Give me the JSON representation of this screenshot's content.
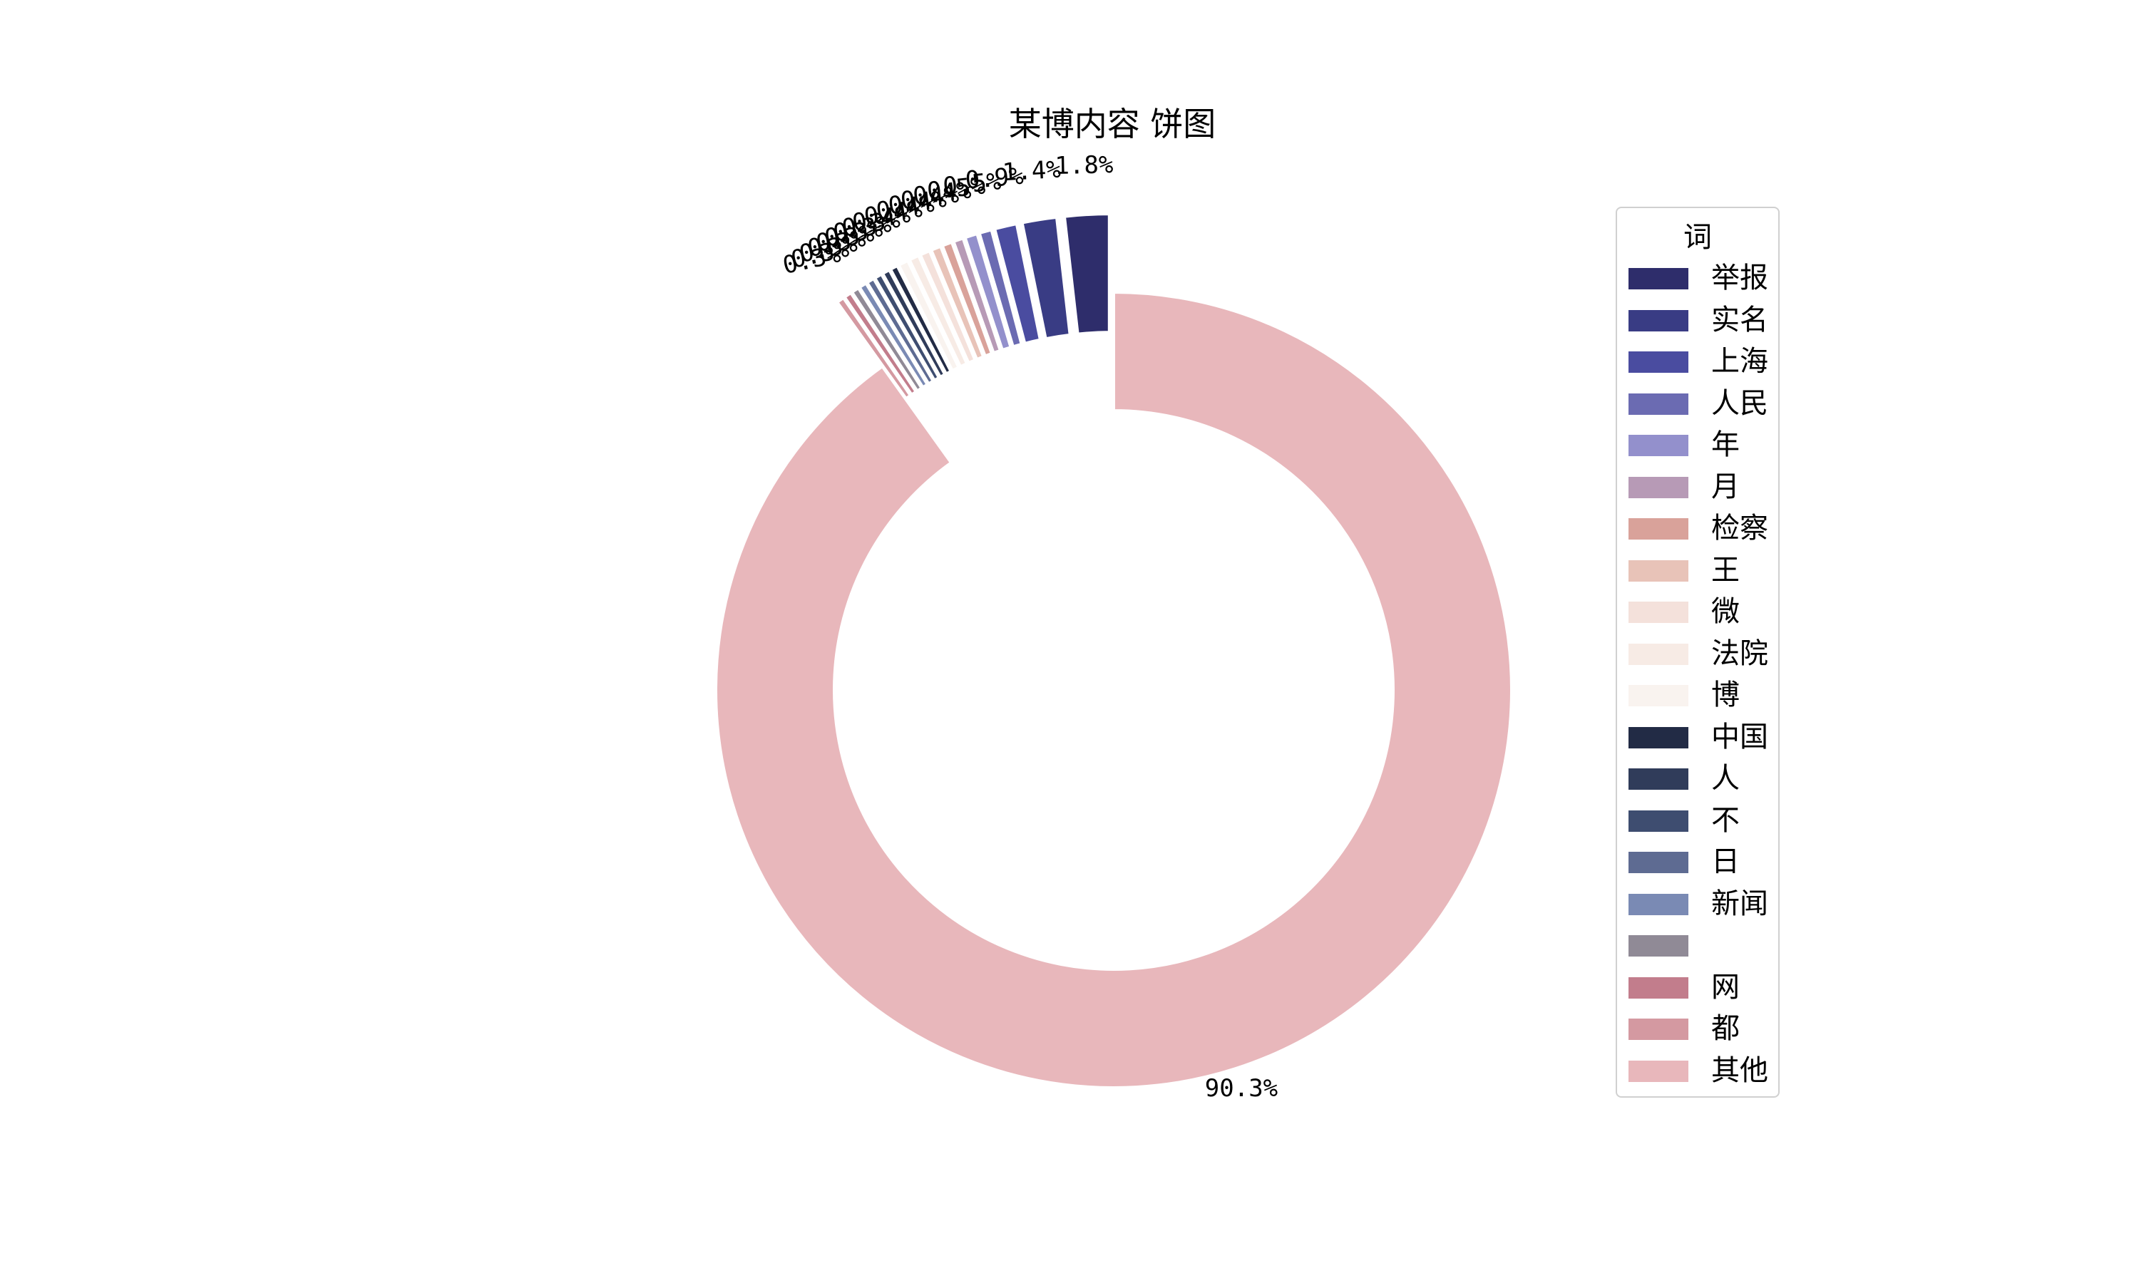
{
  "chart_data": {
    "type": "pie",
    "variant": "donut",
    "title": "某博内容 饼图",
    "legend_title": "词",
    "legend_placement": "right",
    "start_angle_deg": 90,
    "direction": "counterclockwise",
    "categories": [
      "举报",
      "实名",
      "上海",
      "人民",
      "年",
      "月",
      "检察",
      "王",
      "微",
      "法院",
      "博",
      "中国",
      "人",
      "不",
      "日",
      "新闻",
      "",
      "网",
      "都",
      "其他"
    ],
    "values": [
      1.8,
      1.4,
      0.9,
      0.5,
      0.5,
      0.4,
      0.4,
      0.4,
      0.4,
      0.4,
      0.4,
      0.3,
      0.3,
      0.3,
      0.3,
      0.3,
      0.3,
      0.3,
      0.3,
      90.3
    ],
    "labels": [
      "1.8%",
      "1.4%",
      "0.9%",
      "0.5%",
      "0.5%",
      "0.4%",
      "0.4%",
      "0.4%",
      "0.4%",
      "0.4%",
      "0.4%",
      "0.3%",
      "0.3%",
      "0.3%",
      "0.3%",
      "0.3%",
      "0.3%",
      "0.3%",
      "0.3%",
      "90.3%"
    ],
    "colors": [
      "#2e2d6b",
      "#393c84",
      "#4a4ca0",
      "#6b6bb2",
      "#9390cc",
      "#b79ab6",
      "#d9a29a",
      "#e8c3b8",
      "#f4e1db",
      "#f7ebe5",
      "#f9f3ef",
      "#222b45",
      "#303c5a",
      "#3e4d70",
      "#5e6b92",
      "#7a8ab4",
      "#908a96",
      "#c27d8c",
      "#d499a1",
      "#e8b7bb"
    ]
  }
}
